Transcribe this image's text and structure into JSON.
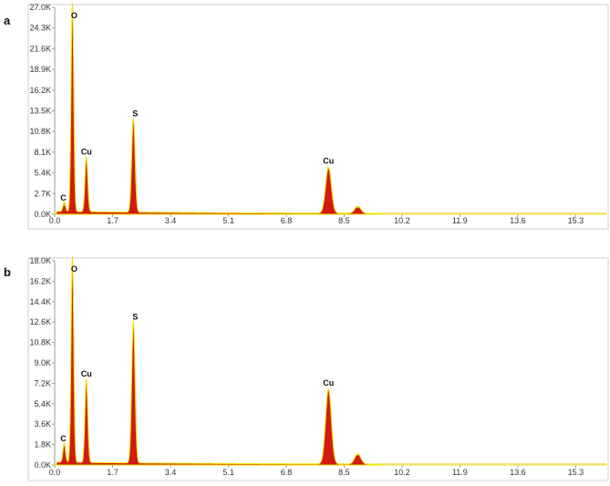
{
  "colors": {
    "fill": "#d11a10",
    "outline": "#f2e200",
    "baseline_tail": "#f0e27a"
  },
  "chart_data": [
    {
      "type": "area",
      "panel_label": "a",
      "ylim": [
        0,
        27000
      ],
      "xlim": [
        0,
        16.2
      ],
      "y_ticks": [
        0,
        2700,
        5400,
        8100,
        10800,
        13500,
        16200,
        18900,
        21600,
        24300,
        27000
      ],
      "y_tick_labels": [
        "0.0K",
        "2.7K",
        "5.4K",
        "8.1K",
        "10.8K",
        "13.5K",
        "16.2K",
        "18.9K",
        "21.6K",
        "24.3K",
        "27.0K"
      ],
      "x_ticks": [
        0,
        1.7,
        3.4,
        5.1,
        6.8,
        8.5,
        10.2,
        11.9,
        13.6,
        15.3
      ],
      "x_tick_labels": [
        "0.0",
        "1.7",
        "3.4",
        "5.1",
        "6.8",
        "8.5",
        "10.2",
        "11.9",
        "13.6",
        "15.3"
      ],
      "peaks": [
        {
          "label": "C",
          "x": 0.28,
          "y": 1200
        },
        {
          "label": "O",
          "x": 0.52,
          "y": 27500
        },
        {
          "label": "Cu",
          "x": 0.93,
          "y": 7200
        },
        {
          "label": "S",
          "x": 2.31,
          "y": 12300
        },
        {
          "label": "Cu",
          "x": 8.04,
          "y": 6000
        },
        {
          "label": "",
          "x": 8.9,
          "y": 900
        }
      ]
    },
    {
      "type": "area",
      "panel_label": "b",
      "ylim": [
        0,
        18000
      ],
      "xlim": [
        0,
        16.2
      ],
      "y_ticks": [
        0,
        1800,
        3600,
        5400,
        7200,
        9000,
        10800,
        12600,
        14400,
        16200,
        18000
      ],
      "y_tick_labels": [
        "0.0K",
        "1.8K",
        "3.6K",
        "5.4K",
        "7.2K",
        "9.0K",
        "10.8K",
        "12.6K",
        "14.4K",
        "16.2K",
        "18.0K"
      ],
      "x_ticks": [
        0,
        1.7,
        3.4,
        5.1,
        6.8,
        8.5,
        10.2,
        11.9,
        13.6,
        15.3
      ],
      "x_tick_labels": [
        "0.0",
        "1.7",
        "3.4",
        "5.1",
        "6.8",
        "8.5",
        "10.2",
        "11.9",
        "13.6",
        "15.3"
      ],
      "peaks": [
        {
          "label": "C",
          "x": 0.28,
          "y": 1700
        },
        {
          "label": "O",
          "x": 0.52,
          "y": 18200
        },
        {
          "label": "Cu",
          "x": 0.93,
          "y": 7400
        },
        {
          "label": "S",
          "x": 2.31,
          "y": 12500
        },
        {
          "label": "Cu",
          "x": 8.04,
          "y": 6600
        },
        {
          "label": "",
          "x": 8.9,
          "y": 900
        }
      ]
    }
  ]
}
